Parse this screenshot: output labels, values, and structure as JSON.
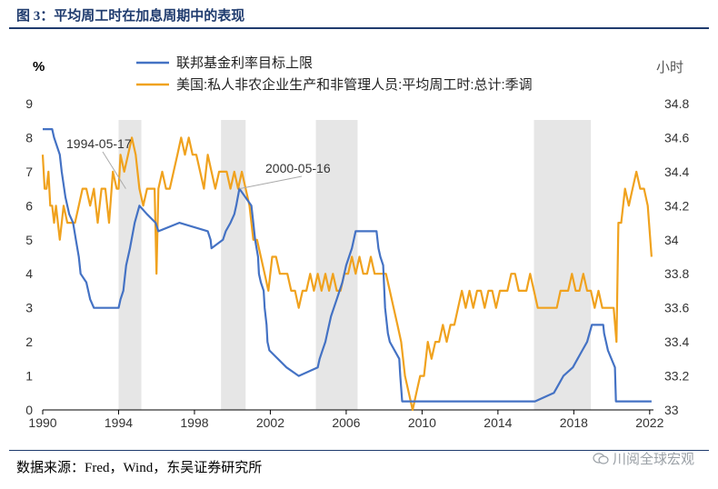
{
  "figure": {
    "title": "图 3：平均周工时在加息周期中的表现",
    "source": "数据来源：Fred，Wind，东吴证券研究所",
    "watermark": "川阅全球宏观"
  },
  "chart_data": {
    "type": "line",
    "title": "",
    "left_unit": "%",
    "right_unit": "小时",
    "x_ticks": [
      "1990",
      "1994",
      "1998",
      "2002",
      "2006",
      "2010",
      "2014",
      "2018",
      "2022"
    ],
    "xlim": [
      1990,
      2022.2
    ],
    "ylim_left": [
      0,
      9
    ],
    "left_ticks": [
      "0",
      "1",
      "2",
      "3",
      "4",
      "5",
      "6",
      "7",
      "8",
      "9"
    ],
    "ylim_right": [
      33,
      34.8
    ],
    "right_ticks": [
      "33",
      "33.2",
      "33.4",
      "33.6",
      "33.8",
      "34",
      "34.2",
      "34.4",
      "34.6",
      "34.8"
    ],
    "grid": false,
    "legend_position": "top",
    "shaded_periods": [
      [
        1994.0,
        1995.2
      ],
      [
        1999.4,
        2000.7
      ],
      [
        2004.4,
        2006.6
      ],
      [
        2015.9,
        2018.9
      ]
    ],
    "annotations": [
      {
        "label": "1994-05-17",
        "x": 1994.38,
        "y_right": 34.3
      },
      {
        "label": "2000-05-16",
        "x": 2000.37,
        "y_right": 34.3
      }
    ],
    "series": [
      {
        "name": "联邦基金利率目标上限",
        "color": "#4472c4",
        "axis": "left",
        "points": [
          [
            1990.0,
            8.25
          ],
          [
            1990.5,
            8.25
          ],
          [
            1990.6,
            8.0
          ],
          [
            1990.9,
            7.5
          ],
          [
            1991.0,
            7.0
          ],
          [
            1991.2,
            6.25
          ],
          [
            1991.4,
            5.75
          ],
          [
            1991.6,
            5.5
          ],
          [
            1991.75,
            5.0
          ],
          [
            1991.9,
            4.5
          ],
          [
            1992.0,
            4.0
          ],
          [
            1992.3,
            3.75
          ],
          [
            1992.5,
            3.25
          ],
          [
            1992.7,
            3.0
          ],
          [
            1993.0,
            3.0
          ],
          [
            1994.0,
            3.0
          ],
          [
            1994.1,
            3.25
          ],
          [
            1994.25,
            3.5
          ],
          [
            1994.3,
            3.75
          ],
          [
            1994.4,
            4.25
          ],
          [
            1994.6,
            4.75
          ],
          [
            1994.85,
            5.5
          ],
          [
            1995.1,
            6.0
          ],
          [
            1995.5,
            5.75
          ],
          [
            1995.95,
            5.5
          ],
          [
            1996.1,
            5.25
          ],
          [
            1997.2,
            5.5
          ],
          [
            1998.7,
            5.25
          ],
          [
            1998.85,
            5.0
          ],
          [
            1998.9,
            4.75
          ],
          [
            1999.5,
            5.0
          ],
          [
            1999.65,
            5.25
          ],
          [
            1999.9,
            5.5
          ],
          [
            2000.1,
            5.75
          ],
          [
            2000.2,
            6.0
          ],
          [
            2000.37,
            6.5
          ],
          [
            2001.0,
            6.0
          ],
          [
            2001.1,
            5.5
          ],
          [
            2001.2,
            5.0
          ],
          [
            2001.35,
            4.5
          ],
          [
            2001.4,
            4.0
          ],
          [
            2001.5,
            3.75
          ],
          [
            2001.65,
            3.5
          ],
          [
            2001.7,
            3.0
          ],
          [
            2001.8,
            2.5
          ],
          [
            2001.85,
            2.0
          ],
          [
            2001.95,
            1.75
          ],
          [
            2002.85,
            1.25
          ],
          [
            2003.5,
            1.0
          ],
          [
            2004.5,
            1.25
          ],
          [
            2004.6,
            1.5
          ],
          [
            2004.75,
            1.75
          ],
          [
            2004.9,
            2.0
          ],
          [
            2005.0,
            2.25
          ],
          [
            2005.2,
            2.75
          ],
          [
            2005.5,
            3.25
          ],
          [
            2005.8,
            3.75
          ],
          [
            2006.0,
            4.25
          ],
          [
            2006.3,
            4.75
          ],
          [
            2006.5,
            5.25
          ],
          [
            2007.6,
            5.25
          ],
          [
            2007.7,
            4.75
          ],
          [
            2007.8,
            4.5
          ],
          [
            2007.95,
            4.25
          ],
          [
            2008.05,
            3.0
          ],
          [
            2008.2,
            2.25
          ],
          [
            2008.3,
            2.0
          ],
          [
            2008.8,
            1.5
          ],
          [
            2008.85,
            1.0
          ],
          [
            2008.95,
            0.25
          ],
          [
            2015.95,
            0.25
          ],
          [
            2016.95,
            0.5
          ],
          [
            2017.2,
            0.75
          ],
          [
            2017.45,
            1.0
          ],
          [
            2017.95,
            1.25
          ],
          [
            2018.2,
            1.5
          ],
          [
            2018.45,
            1.75
          ],
          [
            2018.7,
            2.0
          ],
          [
            2018.95,
            2.5
          ],
          [
            2019.55,
            2.5
          ],
          [
            2019.6,
            2.25
          ],
          [
            2019.7,
            2.0
          ],
          [
            2019.8,
            1.75
          ],
          [
            2020.17,
            1.25
          ],
          [
            2020.22,
            0.25
          ],
          [
            2022.0,
            0.25
          ],
          [
            2022.1,
            0.25
          ]
        ]
      },
      {
        "name": "美国:私人非农企业生产和非管理人员:平均周工时:总计:季调",
        "color": "#f0a21e",
        "axis": "right",
        "points": [
          [
            1990.0,
            34.5
          ],
          [
            1990.1,
            34.3
          ],
          [
            1990.2,
            34.3
          ],
          [
            1990.3,
            34.4
          ],
          [
            1990.4,
            34.2
          ],
          [
            1990.5,
            34.2
          ],
          [
            1990.6,
            34.1
          ],
          [
            1990.7,
            34.2
          ],
          [
            1990.8,
            34.1
          ],
          [
            1990.9,
            34.0
          ],
          [
            1991.0,
            34.1
          ],
          [
            1991.1,
            34.2
          ],
          [
            1991.3,
            34.1
          ],
          [
            1991.5,
            34.1
          ],
          [
            1991.7,
            34.1
          ],
          [
            1991.9,
            34.2
          ],
          [
            1992.1,
            34.3
          ],
          [
            1992.3,
            34.3
          ],
          [
            1992.5,
            34.2
          ],
          [
            1992.7,
            34.3
          ],
          [
            1992.9,
            34.1
          ],
          [
            1993.1,
            34.3
          ],
          [
            1993.3,
            34.3
          ],
          [
            1993.5,
            34.1
          ],
          [
            1993.7,
            34.4
          ],
          [
            1993.9,
            34.3
          ],
          [
            1994.0,
            34.3
          ],
          [
            1994.1,
            34.5
          ],
          [
            1994.3,
            34.4
          ],
          [
            1994.5,
            34.5
          ],
          [
            1994.7,
            34.6
          ],
          [
            1994.9,
            34.5
          ],
          [
            1995.1,
            34.3
          ],
          [
            1995.3,
            34.2
          ],
          [
            1995.5,
            34.3
          ],
          [
            1995.7,
            34.3
          ],
          [
            1995.9,
            34.3
          ],
          [
            1996.0,
            33.8
          ],
          [
            1996.1,
            34.3
          ],
          [
            1996.3,
            34.4
          ],
          [
            1996.5,
            34.3
          ],
          [
            1996.7,
            34.3
          ],
          [
            1996.9,
            34.4
          ],
          [
            1997.1,
            34.5
          ],
          [
            1997.3,
            34.6
          ],
          [
            1997.5,
            34.5
          ],
          [
            1997.7,
            34.6
          ],
          [
            1997.9,
            34.5
          ],
          [
            1998.1,
            34.5
          ],
          [
            1998.3,
            34.4
          ],
          [
            1998.5,
            34.3
          ],
          [
            1998.7,
            34.5
          ],
          [
            1998.9,
            34.4
          ],
          [
            1999.1,
            34.3
          ],
          [
            1999.3,
            34.4
          ],
          [
            1999.5,
            34.4
          ],
          [
            1999.7,
            34.4
          ],
          [
            1999.9,
            34.3
          ],
          [
            2000.1,
            34.4
          ],
          [
            2000.3,
            34.3
          ],
          [
            2000.5,
            34.4
          ],
          [
            2000.7,
            34.3
          ],
          [
            2000.9,
            34.2
          ],
          [
            2001.1,
            34.0
          ],
          [
            2001.3,
            34.0
          ],
          [
            2001.5,
            33.9
          ],
          [
            2001.7,
            33.8
          ],
          [
            2001.9,
            33.7
          ],
          [
            2002.1,
            33.9
          ],
          [
            2002.3,
            33.9
          ],
          [
            2002.5,
            33.8
          ],
          [
            2002.7,
            33.8
          ],
          [
            2002.9,
            33.8
          ],
          [
            2003.1,
            33.7
          ],
          [
            2003.3,
            33.7
          ],
          [
            2003.5,
            33.6
          ],
          [
            2003.7,
            33.7
          ],
          [
            2003.9,
            33.7
          ],
          [
            2004.1,
            33.8
          ],
          [
            2004.3,
            33.7
          ],
          [
            2004.5,
            33.8
          ],
          [
            2004.7,
            33.7
          ],
          [
            2004.9,
            33.8
          ],
          [
            2005.1,
            33.7
          ],
          [
            2005.3,
            33.8
          ],
          [
            2005.5,
            33.7
          ],
          [
            2005.7,
            33.7
          ],
          [
            2005.9,
            33.8
          ],
          [
            2006.1,
            33.8
          ],
          [
            2006.3,
            33.9
          ],
          [
            2006.5,
            33.8
          ],
          [
            2006.7,
            33.9
          ],
          [
            2006.9,
            33.8
          ],
          [
            2007.1,
            33.8
          ],
          [
            2007.3,
            33.9
          ],
          [
            2007.5,
            33.8
          ],
          [
            2007.7,
            33.8
          ],
          [
            2007.9,
            33.8
          ],
          [
            2008.1,
            33.8
          ],
          [
            2008.3,
            33.7
          ],
          [
            2008.5,
            33.6
          ],
          [
            2008.7,
            33.5
          ],
          [
            2008.9,
            33.4
          ],
          [
            2009.1,
            33.2
          ],
          [
            2009.3,
            33.1
          ],
          [
            2009.5,
            33.0
          ],
          [
            2009.7,
            33.1
          ],
          [
            2009.9,
            33.2
          ],
          [
            2010.1,
            33.2
          ],
          [
            2010.3,
            33.4
          ],
          [
            2010.5,
            33.3
          ],
          [
            2010.7,
            33.4
          ],
          [
            2010.9,
            33.4
          ],
          [
            2011.1,
            33.5
          ],
          [
            2011.3,
            33.4
          ],
          [
            2011.5,
            33.5
          ],
          [
            2011.7,
            33.5
          ],
          [
            2011.9,
            33.6
          ],
          [
            2012.1,
            33.7
          ],
          [
            2012.3,
            33.6
          ],
          [
            2012.5,
            33.7
          ],
          [
            2012.7,
            33.6
          ],
          [
            2012.9,
            33.7
          ],
          [
            2013.1,
            33.7
          ],
          [
            2013.3,
            33.6
          ],
          [
            2013.5,
            33.7
          ],
          [
            2013.7,
            33.7
          ],
          [
            2013.9,
            33.6
          ],
          [
            2014.1,
            33.7
          ],
          [
            2014.3,
            33.7
          ],
          [
            2014.5,
            33.7
          ],
          [
            2014.7,
            33.8
          ],
          [
            2014.9,
            33.8
          ],
          [
            2015.1,
            33.7
          ],
          [
            2015.3,
            33.7
          ],
          [
            2015.5,
            33.7
          ],
          [
            2015.7,
            33.8
          ],
          [
            2015.9,
            33.7
          ],
          [
            2016.1,
            33.6
          ],
          [
            2016.3,
            33.6
          ],
          [
            2016.5,
            33.6
          ],
          [
            2016.7,
            33.6
          ],
          [
            2016.9,
            33.6
          ],
          [
            2017.1,
            33.6
          ],
          [
            2017.3,
            33.7
          ],
          [
            2017.5,
            33.7
          ],
          [
            2017.7,
            33.7
          ],
          [
            2017.9,
            33.8
          ],
          [
            2018.1,
            33.7
          ],
          [
            2018.3,
            33.7
          ],
          [
            2018.5,
            33.8
          ],
          [
            2018.7,
            33.7
          ],
          [
            2018.9,
            33.7
          ],
          [
            2019.1,
            33.6
          ],
          [
            2019.3,
            33.7
          ],
          [
            2019.5,
            33.6
          ],
          [
            2019.7,
            33.6
          ],
          [
            2019.9,
            33.6
          ],
          [
            2020.1,
            33.6
          ],
          [
            2020.25,
            33.4
          ],
          [
            2020.35,
            34.1
          ],
          [
            2020.5,
            34.1
          ],
          [
            2020.7,
            34.3
          ],
          [
            2020.9,
            34.2
          ],
          [
            2021.1,
            34.3
          ],
          [
            2021.3,
            34.4
          ],
          [
            2021.5,
            34.3
          ],
          [
            2021.7,
            34.3
          ],
          [
            2021.9,
            34.2
          ],
          [
            2022.1,
            33.9
          ]
        ]
      }
    ]
  }
}
